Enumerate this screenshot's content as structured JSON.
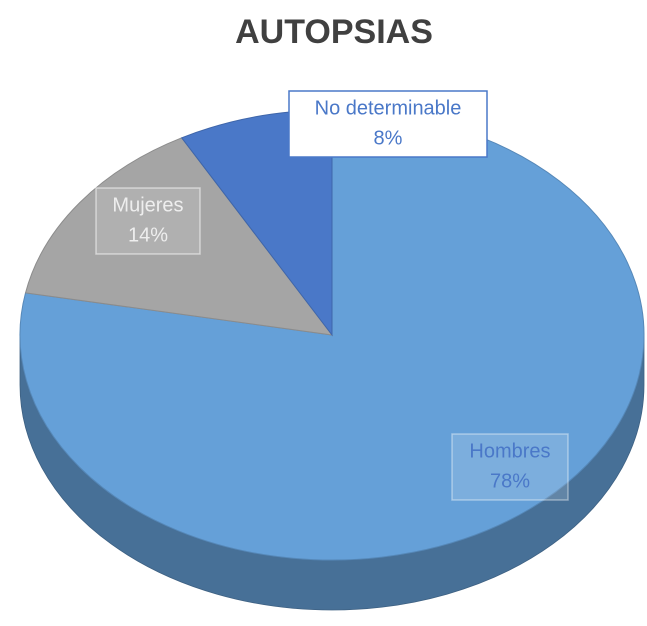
{
  "chart_data": {
    "type": "pie",
    "title": "AUTOPSIAS",
    "categories": [
      "Hombres",
      "Mujeres",
      "No determinable"
    ],
    "values": [
      78,
      14,
      8
    ],
    "value_labels": [
      "78%",
      "14%",
      "8%"
    ],
    "colors": [
      "#65a0d8",
      "#a5a5a5",
      "#4a78c8"
    ]
  }
}
